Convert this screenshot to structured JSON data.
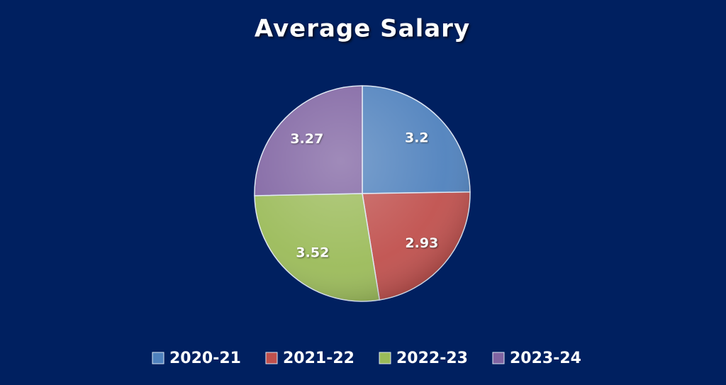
{
  "chart_data": {
    "type": "pie",
    "title": "Average Salary",
    "categories": [
      "2020-21",
      "2021-22",
      "2022-23",
      "2023-24"
    ],
    "values": [
      3.2,
      2.93,
      3.52,
      3.27
    ],
    "colors": [
      "#4f81bd",
      "#c0504d",
      "#9bbb59",
      "#8064a2"
    ],
    "legend": "bottom"
  }
}
